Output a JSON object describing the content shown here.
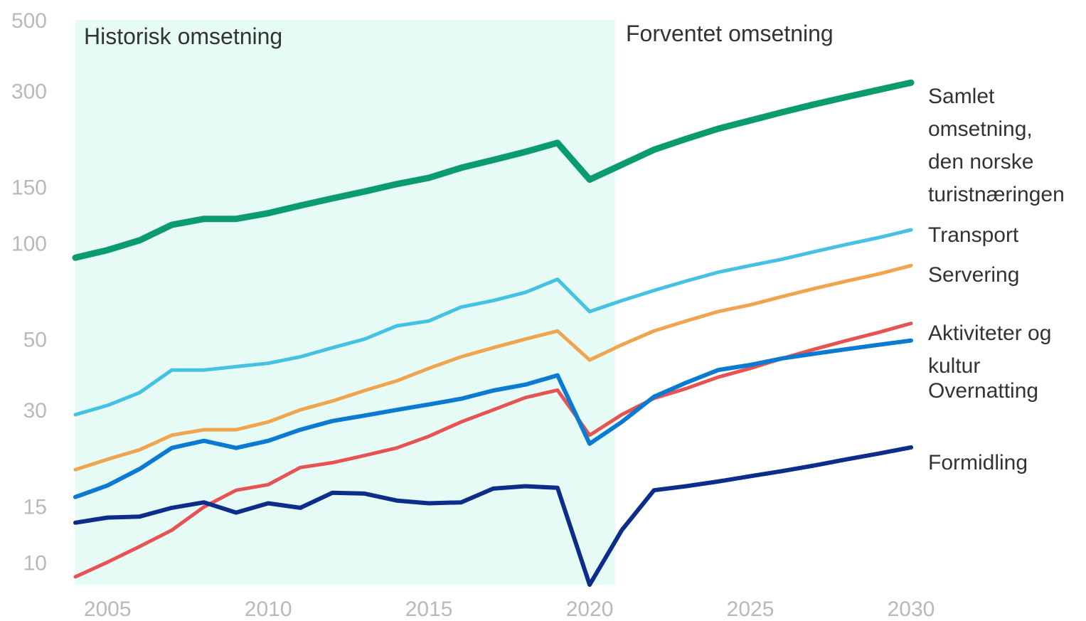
{
  "chart_data": {
    "type": "line",
    "y_scale": "log",
    "ylim": [
      8.5,
      500
    ],
    "xlim": [
      2004,
      2030
    ],
    "y_ticks": [
      500,
      300,
      150,
      100,
      50,
      30,
      15,
      10
    ],
    "x_ticks": [
      2005,
      2010,
      2015,
      2020,
      2025,
      2030
    ],
    "grid": false,
    "legend": "none (series labeled at right end)",
    "shaded_region": {
      "x_from": 2004,
      "x_to": 2020.8,
      "color": "#e6fbf6",
      "label": "Historisk omsetning"
    },
    "forecast_label": "Forventet omsetning",
    "x": [
      2004,
      2005,
      2006,
      2007,
      2008,
      2009,
      2010,
      2011,
      2012,
      2013,
      2014,
      2015,
      2016,
      2017,
      2018,
      2019,
      2020,
      2021,
      2022,
      2023,
      2024,
      2025,
      2026,
      2027,
      2028,
      2029,
      2030
    ],
    "series": [
      {
        "name": "Samlet omsetning, den norske turistnæringen",
        "label_lines": [
          "Samlet",
          "omsetning,",
          "den norske",
          "turistnæringen"
        ],
        "color": "#0a9b6e",
        "width": 9,
        "values": [
          90,
          95,
          102,
          114,
          119,
          119,
          124,
          131,
          138,
          145,
          153,
          160,
          172,
          182,
          193,
          206,
          158,
          176,
          196,
          212,
          228,
          242,
          257,
          272,
          287,
          302,
          318
        ]
      },
      {
        "name": "Transport",
        "label_lines": [
          "Transport"
        ],
        "color": "#44c1e3",
        "width": 5,
        "values": [
          29,
          31,
          34,
          40,
          40,
          41,
          42,
          44,
          47,
          50,
          55,
          57,
          63,
          66,
          70,
          77,
          61,
          66,
          71,
          76,
          81,
          85,
          89,
          94,
          99,
          104,
          110
        ]
      },
      {
        "name": "Servering",
        "label_lines": [
          "Servering"
        ],
        "color": "#f0a44d",
        "width": 5,
        "values": [
          19.5,
          21,
          22.5,
          25,
          26,
          26,
          27.5,
          30,
          32,
          34.5,
          37,
          40.5,
          44,
          47,
          50,
          53,
          43,
          48,
          53,
          57,
          61,
          64,
          68,
          72,
          76,
          80,
          85
        ]
      },
      {
        "name": "Aktiviteter og kultur",
        "label_lines": [
          "Aktiviteter og",
          "kultur"
        ],
        "color": "#e75353",
        "width": 5,
        "values": [
          9,
          10,
          11.2,
          12.6,
          14.9,
          16.8,
          17.5,
          19.8,
          20.5,
          21.6,
          22.8,
          24.8,
          27.5,
          30,
          32.8,
          34.6,
          25,
          29,
          32.6,
          35,
          38,
          40.5,
          43.5,
          46.5,
          49.5,
          52.5,
          56
        ]
      },
      {
        "name": "Overnatting",
        "label_lines": [
          "Overnatting"
        ],
        "color": "#0a7bd0",
        "width": 6,
        "values": [
          16,
          17.4,
          19.6,
          22.8,
          24,
          22.8,
          24,
          26,
          27.7,
          28.8,
          30,
          31.2,
          32.5,
          34.5,
          36,
          38.5,
          23.5,
          27.5,
          33,
          36.5,
          40,
          41.5,
          43.5,
          45,
          46.5,
          48,
          49.5
        ]
      },
      {
        "name": "Formidling",
        "label_lines": [
          "Formidling"
        ],
        "color": "#0d2d8a",
        "width": 6,
        "values": [
          13.3,
          13.8,
          13.9,
          14.8,
          15.4,
          14.3,
          15.3,
          14.8,
          16.5,
          16.4,
          15.6,
          15.3,
          15.4,
          17,
          17.3,
          17.1,
          8.5,
          12.6,
          16.8,
          17.3,
          17.9,
          18.6,
          19.3,
          20.1,
          21,
          21.9,
          22.9
        ]
      }
    ]
  }
}
